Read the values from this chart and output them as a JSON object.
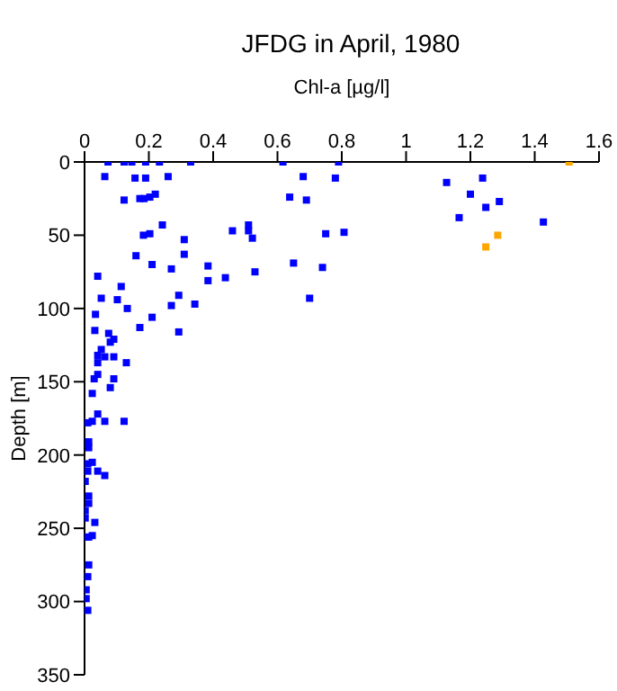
{
  "chart_data": {
    "type": "scatter",
    "title": "JFDG in April, 1980",
    "xlabel": "Chl-a [µg/l]",
    "ylabel": "Depth [m]",
    "xlim": [
      0,
      1.6
    ],
    "xticks": [
      0,
      0.2,
      0.4,
      0.6,
      0.8,
      1,
      1.2,
      1.4,
      1.6
    ],
    "ylim": [
      350,
      0
    ],
    "yticks": [
      0,
      50,
      100,
      150,
      200,
      250,
      300,
      350
    ],
    "grid": false,
    "marker": "square",
    "series": [
      {
        "color": "#0000ff",
        "x": [
          0.073,
          0.123,
          0.147,
          0.19,
          0.233,
          0.33,
          0.617,
          0.79,
          0.063,
          0.157,
          0.19,
          0.26,
          0.68,
          0.78,
          0.123,
          0.172,
          0.185,
          0.203,
          0.22,
          0.638,
          0.69,
          0.242,
          0.51,
          0.51,
          0.46,
          0.522,
          0.183,
          0.203,
          0.31,
          0.75,
          0.16,
          0.31,
          0.21,
          0.27,
          0.384,
          0.53,
          0.65,
          0.74,
          0.384,
          0.438,
          0.041,
          0.114,
          0.293,
          0.052,
          0.102,
          0.27,
          0.343,
          0.7,
          0.133,
          0.034,
          0.21,
          1.126,
          1.238,
          1.2,
          1.29,
          1.248,
          1.165,
          1.427,
          0.807,
          0.172,
          0.032,
          0.075,
          0.293,
          0.091,
          0.08,
          0.052,
          0.041,
          0.063,
          0.091,
          0.041,
          0.13,
          0.041,
          0.091,
          0.03,
          0.08,
          0.024,
          0.041,
          0.024,
          0.063,
          0.123,
          0.01,
          0.013,
          0.013,
          0.024,
          0.01,
          0.01,
          0.041,
          0.063,
          0.002,
          0.013,
          0.013,
          0.002,
          0.002,
          0.032,
          0.024,
          0.002,
          0.013,
          0.013,
          0.01,
          0.005,
          0.005,
          0.01
        ],
        "values": [
          0,
          0,
          0,
          0,
          0,
          0,
          0,
          0,
          10,
          11,
          11,
          10,
          10,
          11,
          26,
          25,
          25,
          24,
          22,
          24,
          26,
          43,
          43,
          47,
          47,
          52,
          50,
          49,
          53,
          49,
          64,
          63,
          70,
          73,
          71,
          75,
          69,
          72,
          81,
          79,
          78,
          85,
          91,
          93,
          94,
          98,
          97,
          93,
          100,
          104,
          106,
          14,
          11,
          22,
          27,
          31,
          38,
          41,
          48,
          113,
          115,
          117,
          116,
          121,
          123,
          128,
          132,
          133,
          133,
          137,
          137,
          145,
          148,
          148,
          154,
          158,
          172,
          177,
          177,
          177,
          178,
          191,
          195,
          205,
          206,
          211,
          211,
          214,
          218,
          228,
          233,
          238,
          243,
          246,
          255,
          256,
          256,
          275,
          283,
          292,
          298,
          306
        ]
      },
      {
        "color": "#ffa500",
        "x": [
          1.507,
          1.285,
          1.248
        ],
        "values": [
          0,
          50,
          58
        ]
      }
    ]
  }
}
